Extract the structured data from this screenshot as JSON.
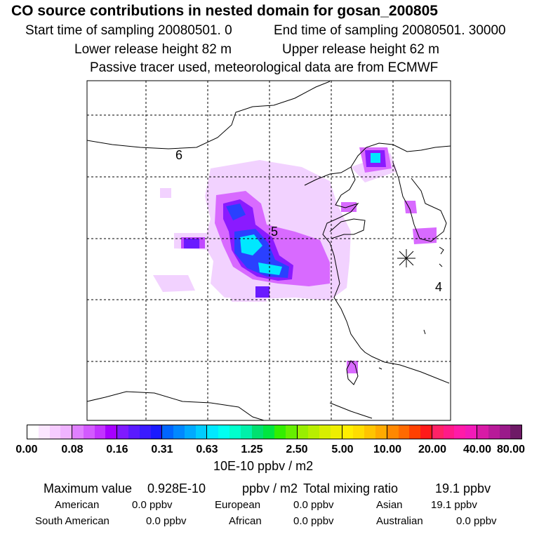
{
  "header": {
    "title": "CO  source contributions in nested domain for gosan_200805",
    "start_label": "Start time of sampling 20080501.     0",
    "end_label": "End time of sampling 20080501. 30000",
    "lower_label": "Lower release height   82 m",
    "upper_label": "Upper release height   62 m",
    "info": "Passive tracer used, meteorological data are from ECMWF"
  },
  "map": {
    "labels": [
      "6",
      "5",
      "4"
    ],
    "receptor": "gosan",
    "colors": {
      "land_outline": "#000000",
      "grid": "#000000"
    }
  },
  "colorbar": {
    "ticks": [
      "0.00",
      "0.08",
      "0.16",
      "0.31",
      "0.63",
      "1.25",
      "2.50",
      "5.00",
      "10.00",
      "20.00",
      "40.00",
      "80.00"
    ],
    "unit": "10E-10 ppbv / m2",
    "swatches": [
      [
        "#ffffff",
        "#fbe6ff",
        "#f6ccff",
        "#efb3ff"
      ],
      [
        "#e080ff",
        "#d35aff",
        "#c233ff",
        "#a600ff"
      ],
      [
        "#7f1aff",
        "#5a1aff",
        "#3a1aff",
        "#1a1aff"
      ],
      [
        "#0066ff",
        "#0088ff",
        "#00aaff",
        "#00ccff"
      ],
      [
        "#00e8ff",
        "#00fff0",
        "#00ffcc",
        "#00f0aa"
      ],
      [
        "#00e070",
        "#00e640",
        "#33ee00",
        "#66ee00"
      ],
      [
        "#99ee00",
        "#b8ee00",
        "#d8ee00",
        "#eeee00"
      ],
      [
        "#ffee00",
        "#ffdd00",
        "#ffc400",
        "#ffaa00"
      ],
      [
        "#ff8800",
        "#ff6a00",
        "#ff4000",
        "#ff1a1a"
      ],
      [
        "#ff2266",
        "#ff1a88",
        "#ff1aa8",
        "#f21ab8"
      ],
      [
        "#d81aa6",
        "#b81a99",
        "#9a1a8a",
        "#6e1a66"
      ]
    ]
  },
  "stats": {
    "max_label": "Maximum value",
    "max_value": "0.928E-10",
    "max_unit": "ppbv / m2",
    "total_label": "Total mixing ratio",
    "total_value": "19.1 ppbv",
    "regions": [
      {
        "name": "American",
        "value": "0.0 ppbv"
      },
      {
        "name": "European",
        "value": "0.0 ppbv"
      },
      {
        "name": "Asian",
        "value": "19.1 ppbv"
      },
      {
        "name": "South American",
        "value": "0.0 ppbv"
      },
      {
        "name": "African",
        "value": "0.0 ppbv"
      },
      {
        "name": "Australian",
        "value": "0.0 ppbv"
      }
    ]
  }
}
